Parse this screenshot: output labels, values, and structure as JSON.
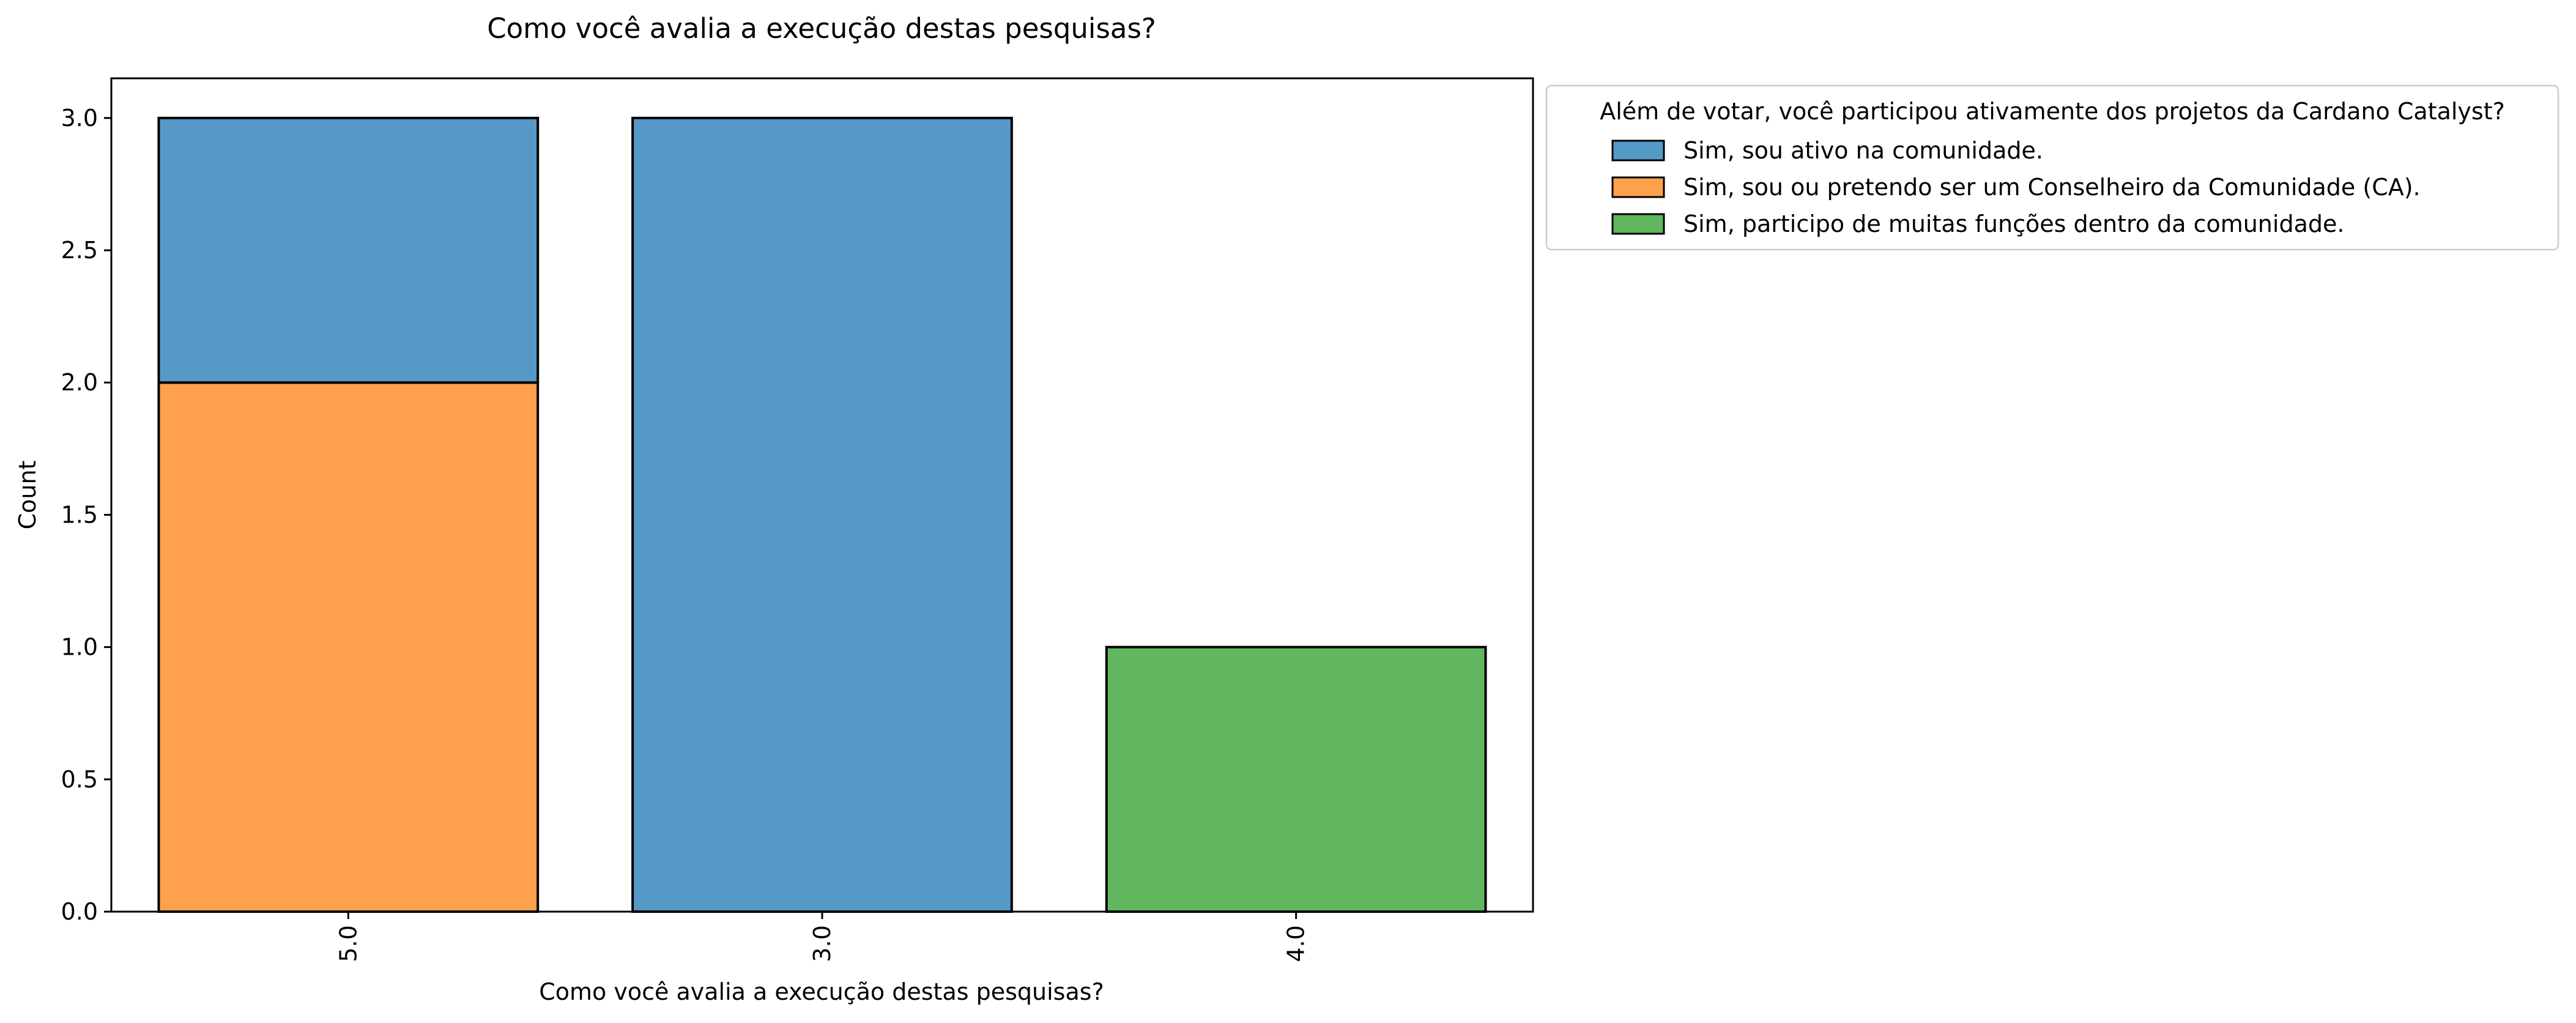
{
  "chart_data": {
    "type": "bar",
    "stacked": true,
    "title": "Como você avalia a execução destas pesquisas?",
    "xlabel": "Como você avalia a execução destas pesquisas?",
    "ylabel": "Count",
    "categories": [
      "5.0",
      "3.0",
      "4.0"
    ],
    "ylim": [
      0,
      3.15
    ],
    "yticks": [
      "0.0",
      "0.5",
      "1.0",
      "1.5",
      "2.0",
      "2.5",
      "3.0"
    ],
    "grid": false,
    "legend": {
      "title": "Além de votar, você participou ativamente dos projetos da Cardano Catalyst?",
      "placement": "outside top-right"
    },
    "series": [
      {
        "name": "Sim, sou ativo na comunidade.",
        "color": "#5599c7",
        "values": [
          1,
          3,
          0
        ]
      },
      {
        "name": "Sim, sou ou pretendo ser um Conselheiro da Comunidade (CA).",
        "color": "#ffa04c",
        "values": [
          2,
          0,
          0
        ]
      },
      {
        "name": "Sim, participo de muitas funções dentro da comunidade.",
        "color": "#61b75e",
        "values": [
          0,
          0,
          1
        ]
      }
    ],
    "stack_order": [
      1,
      2,
      0
    ]
  }
}
